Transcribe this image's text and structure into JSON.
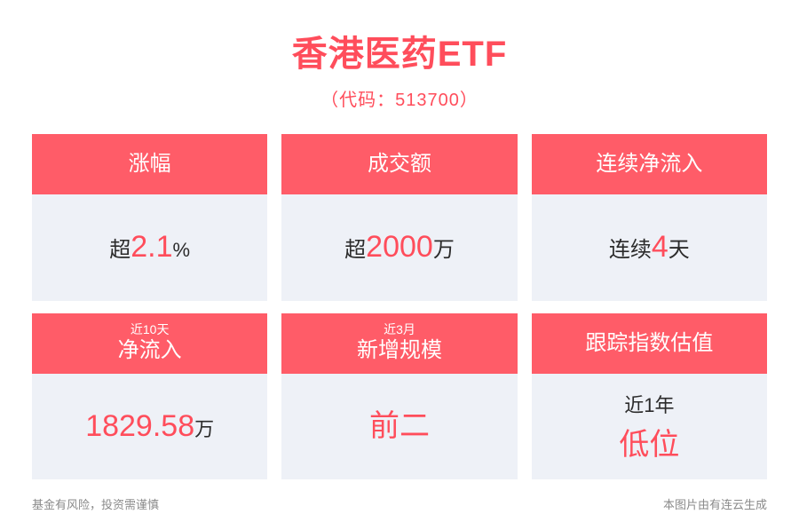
{
  "colors": {
    "accent": "#ff4d5b",
    "header_bg": "#ff5c68",
    "card_body_bg": "#eef1f7",
    "body_text": "#2b2b2b",
    "footer_text": "#8a8a8a",
    "white": "#ffffff"
  },
  "header": {
    "title": "香港医药ETF",
    "subtitle": "（代码：513700）"
  },
  "cards": [
    {
      "header_small": "",
      "header_main": "涨幅",
      "value": {
        "type": "inline",
        "prefix": "超",
        "main": "2.1",
        "suffix": "%",
        "prefix_size": 24,
        "main_size": 34,
        "suffix_size": 22,
        "prefix_color": "#2b2b2b",
        "main_color": "#ff4d5b",
        "suffix_color": "#2b2b2b"
      }
    },
    {
      "header_small": "",
      "header_main": "成交额",
      "value": {
        "type": "inline",
        "prefix": "超",
        "main": "2000",
        "suffix": "万",
        "prefix_size": 24,
        "main_size": 34,
        "suffix_size": 24,
        "prefix_color": "#2b2b2b",
        "main_color": "#ff4d5b",
        "suffix_color": "#2b2b2b"
      }
    },
    {
      "header_small": "",
      "header_main": "连续净流入",
      "value": {
        "type": "inline",
        "prefix": "连续",
        "main": "4",
        "suffix": "天",
        "prefix_size": 24,
        "main_size": 34,
        "suffix_size": 24,
        "prefix_color": "#2b2b2b",
        "main_color": "#ff4d5b",
        "suffix_color": "#2b2b2b"
      }
    },
    {
      "header_small": "近10天",
      "header_main": "净流入",
      "value": {
        "type": "inline",
        "prefix": "",
        "main": "1829.58",
        "suffix": "万",
        "prefix_size": 0,
        "main_size": 34,
        "suffix_size": 22,
        "prefix_color": "#ff4d5b",
        "main_color": "#ff4d5b",
        "suffix_color": "#2b2b2b"
      }
    },
    {
      "header_small": "近3月",
      "header_main": "新增规模",
      "value": {
        "type": "inline",
        "prefix": "",
        "main": "前二",
        "suffix": "",
        "prefix_size": 0,
        "main_size": 34,
        "suffix_size": 0,
        "prefix_color": "#ff4d5b",
        "main_color": "#ff4d5b",
        "suffix_color": "#ff4d5b"
      }
    },
    {
      "header_small": "",
      "header_main": "跟踪指数估值",
      "value": {
        "type": "stack",
        "top": "近1年",
        "bottom": "低位",
        "top_size": 22,
        "bottom_size": 34,
        "top_color": "#2b2b2b",
        "bottom_color": "#ff4d5b"
      }
    }
  ],
  "footer": {
    "left": "基金有风险，投资需谨慎",
    "right": "本图片由有连云生成"
  }
}
